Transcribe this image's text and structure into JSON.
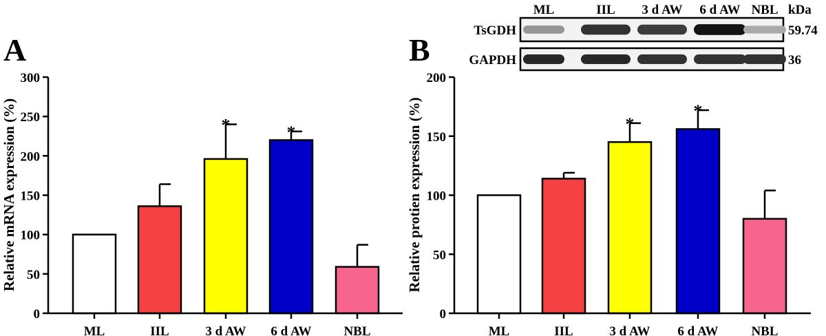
{
  "chart_data": [
    {
      "panel": "A",
      "type": "bar",
      "categories": [
        "ML",
        "IIL",
        "3 d AW",
        "6 d AW",
        "NBL"
      ],
      "values": [
        100,
        136,
        196,
        220,
        59
      ],
      "errors": [
        0,
        28,
        44,
        11,
        28
      ],
      "significance": [
        "",
        "",
        "*",
        "*",
        ""
      ],
      "colors": [
        "#ffffff",
        "#f54141",
        "#ffff00",
        "#0000c8",
        "#f7658f"
      ],
      "xlabel": "",
      "ylabel": "Relative mRNA expression (%)",
      "ylim": [
        0,
        300
      ],
      "yticks": [
        0,
        50,
        100,
        150,
        200,
        250,
        300
      ]
    },
    {
      "panel": "B",
      "type": "bar",
      "categories": [
        "ML",
        "IIL",
        "3 d AW",
        "6 d AW",
        "NBL"
      ],
      "values": [
        100,
        114,
        145,
        156,
        80
      ],
      "errors": [
        0,
        5,
        16,
        16,
        24
      ],
      "significance": [
        "",
        "",
        "*",
        "*",
        ""
      ],
      "colors": [
        "#ffffff",
        "#f54141",
        "#ffff00",
        "#0000c8",
        "#f7658f"
      ],
      "xlabel": "",
      "ylabel": "Relative protien expression (%)",
      "ylim": [
        0,
        200
      ],
      "yticks": [
        0,
        50,
        100,
        150,
        200
      ]
    }
  ],
  "blot": {
    "lanes": [
      "ML",
      "IIL",
      "3 d AW",
      "6 d AW",
      "NBL"
    ],
    "unit": "kDa",
    "rows": [
      {
        "label": "TsGDH",
        "size": "59.74",
        "intensity": [
          0.3,
          0.8,
          0.75,
          0.95,
          0.2
        ]
      },
      {
        "label": "GAPDH",
        "size": "36",
        "intensity": [
          0.85,
          0.85,
          0.8,
          0.8,
          0.8
        ]
      }
    ]
  }
}
